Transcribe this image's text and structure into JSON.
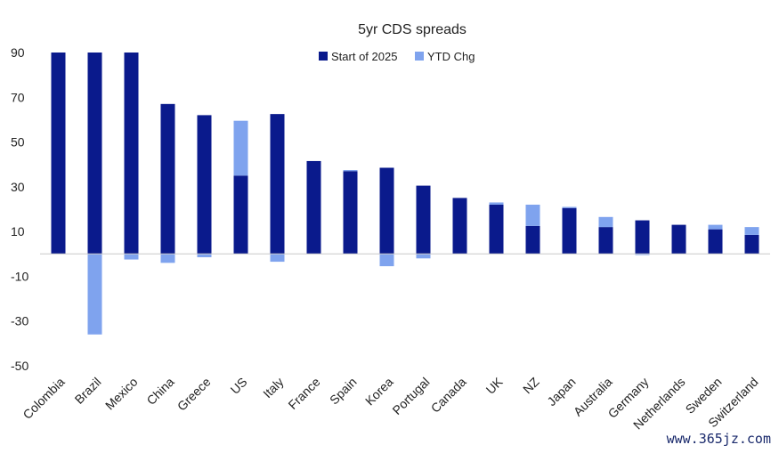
{
  "chart_data": {
    "type": "bar",
    "title": "5yr CDS spreads",
    "categories": [
      "Colombia",
      "Brazil",
      "Mexico",
      "China",
      "Greece",
      "US",
      "Italy",
      "France",
      "Spain",
      "Korea",
      "Portugal",
      "Canada",
      "UK",
      "NZ",
      "Japan",
      "Australia",
      "Germany",
      "Netherlands",
      "Sweden",
      "Switzerland"
    ],
    "series": [
      {
        "name": "Start of 2025",
        "color": "#0a1a8c",
        "values": [
          90,
          90,
          90,
          67,
          62,
          35,
          62.5,
          41.5,
          37,
          38.5,
          30.5,
          25,
          22,
          12.5,
          20.5,
          12,
          15,
          13,
          11,
          8.5
        ]
      },
      {
        "name": "YTD Chg",
        "color": "#7fa3ee",
        "values": [
          0,
          -36,
          -2.5,
          -4,
          -1.5,
          24.5,
          -3.5,
          0,
          0.5,
          -5.5,
          -2,
          0,
          1,
          9.5,
          0.5,
          4.5,
          -0.5,
          0,
          2,
          3.5
        ]
      }
    ],
    "ylim": [
      -50,
      90
    ],
    "yticks": [
      90,
      70,
      50,
      30,
      10,
      -10,
      -30,
      -50
    ],
    "legend": "top-center",
    "grid": false
  },
  "watermark": "www.365jz.com"
}
